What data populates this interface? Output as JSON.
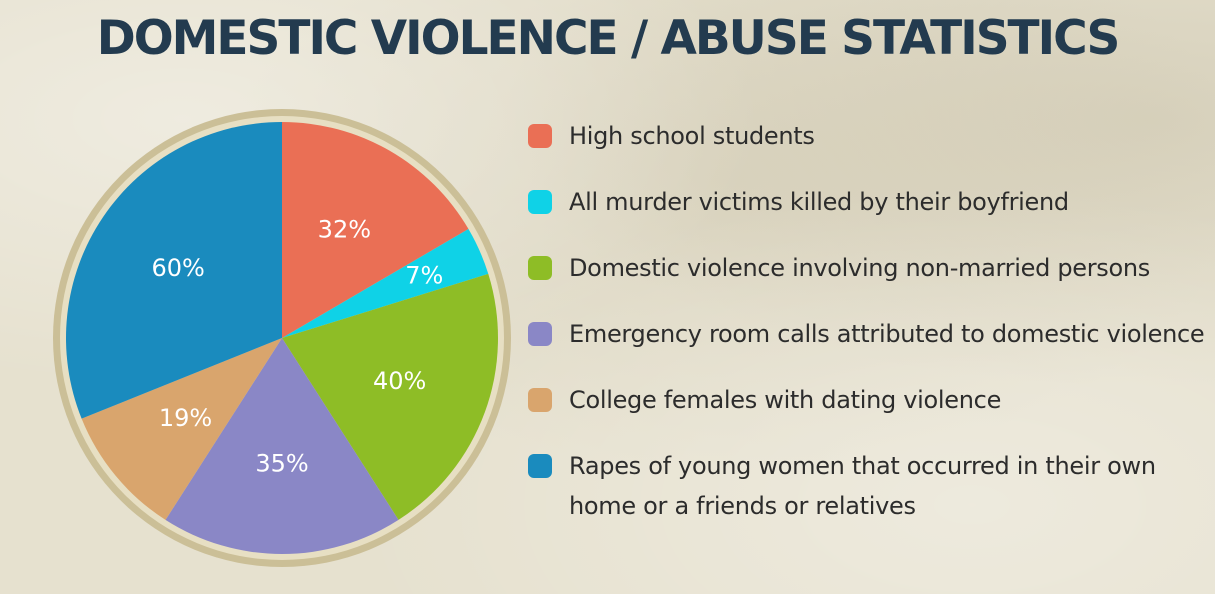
{
  "title": "DOMESTIC VIOLENCE / ABUSE STATISTICS",
  "chart_data": {
    "type": "pie",
    "categories": [
      "High school students",
      "All murder victims killed by their boyfriend",
      "Domestic violence involving non-married persons",
      "Emergency room calls attributed to domestic violence",
      "College females with dating violence",
      "Rapes of young women that occurred in their own home or a friends or relatives"
    ],
    "values": [
      32,
      7,
      40,
      35,
      19,
      60
    ],
    "value_labels": [
      "32%",
      "7%",
      "40%",
      "35%",
      "19%",
      "60%"
    ],
    "colors": [
      "#ea6f55",
      "#0fd2e7",
      "#8ebd26",
      "#8a87c6",
      "#d9a56d",
      "#1a8bbe"
    ],
    "legend_position": "right"
  },
  "legend": [
    {
      "label": "High school students",
      "color": "#ea6f55"
    },
    {
      "label": "All murder victims killed by their boyfriend",
      "color": "#0fd2e7"
    },
    {
      "label": "Domestic violence involving non-married persons",
      "color": "#8ebd26"
    },
    {
      "label": "Emergency room calls attributed to domestic violence",
      "color": "#8a87c6"
    },
    {
      "label": "College females with dating violence",
      "color": "#d9a56d"
    },
    {
      "label": "Rapes of young women that occurred in their own home or a friends or relatives",
      "color": "#1a8bbe"
    }
  ]
}
